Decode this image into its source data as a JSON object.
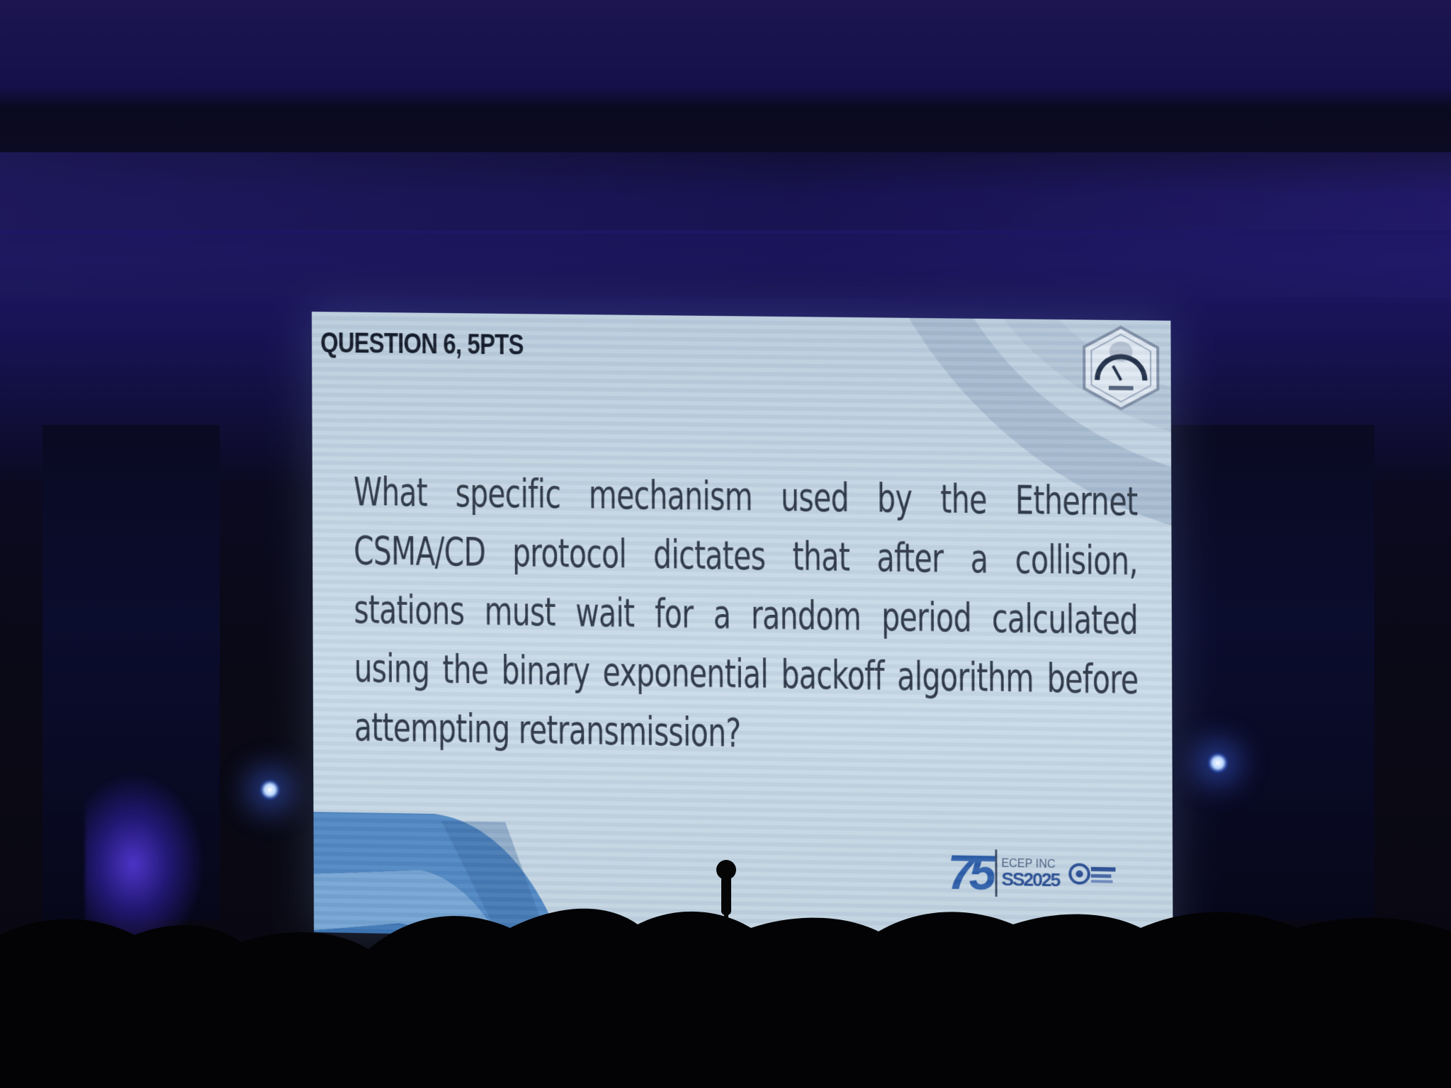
{
  "slide": {
    "question_label": "QUESTION 6, 5PTS",
    "question_text": "What specific mechanism used by the Ethernet CSMA/CD protocol dictates that after a collision, stations must wait for a random period calculated using the binary exponential backoff algorithm before attempting retransmission?",
    "footer_logo": {
      "number": "75",
      "org": "ECEP INC",
      "event": "SS2025"
    }
  },
  "icons": {
    "seal": "hexagon-seal-icon",
    "footer_mark": "organization-mark-icon"
  },
  "colors": {
    "screen_background": "#c4d5e3",
    "text": "#2a3444",
    "accent_blue": "#2b5ca8",
    "room": "#06061a"
  }
}
